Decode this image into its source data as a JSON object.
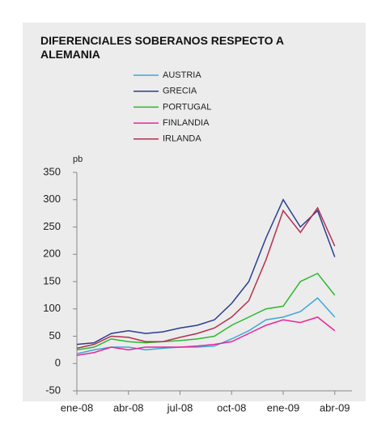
{
  "chart_data": {
    "type": "line",
    "title": "DIFERENCIALES SOBERANOS RESPECTO A ALEMANIA",
    "y_label": "pb",
    "x": [
      "2008-01",
      "2008-02",
      "2008-03",
      "2008-04",
      "2008-05",
      "2008-06",
      "2008-07",
      "2008-08",
      "2008-09",
      "2008-10",
      "2008-11",
      "2008-12",
      "2009-01",
      "2009-02",
      "2009-03",
      "2009-04"
    ],
    "xlim": [
      "2008-01",
      "2009-05"
    ],
    "xticks": [
      {
        "value": "2008-01",
        "label": "ene-08"
      },
      {
        "value": "2008-04",
        "label": "abr-08"
      },
      {
        "value": "2008-07",
        "label": "jul-08"
      },
      {
        "value": "2008-10",
        "label": "oct-08"
      },
      {
        "value": "2009-01",
        "label": "ene-09"
      },
      {
        "value": "2009-04",
        "label": "abr-09"
      }
    ],
    "ylim": [
      -50,
      350
    ],
    "yticks": [
      -50,
      0,
      50,
      100,
      150,
      200,
      250,
      300,
      350
    ],
    "series": [
      {
        "name": "AUSTRIA",
        "color": "#3aa8d8",
        "values": [
          18,
          25,
          30,
          30,
          25,
          28,
          30,
          30,
          32,
          45,
          60,
          80,
          85,
          95,
          120,
          85
        ]
      },
      {
        "name": "GRECIA",
        "color": "#2b3d8f",
        "values": [
          35,
          38,
          55,
          60,
          55,
          58,
          65,
          70,
          80,
          110,
          150,
          230,
          300,
          250,
          280,
          195
        ]
      },
      {
        "name": "PORTUGAL",
        "color": "#2db82d",
        "values": [
          25,
          30,
          45,
          40,
          38,
          40,
          42,
          45,
          50,
          70,
          85,
          100,
          105,
          150,
          165,
          125
        ]
      },
      {
        "name": "FINLANDIA",
        "color": "#e8259a",
        "values": [
          15,
          20,
          30,
          25,
          30,
          30,
          30,
          32,
          35,
          40,
          55,
          70,
          80,
          75,
          85,
          60
        ]
      },
      {
        "name": "IRLANDA",
        "color": "#b0304e",
        "values": [
          28,
          35,
          50,
          48,
          40,
          40,
          48,
          55,
          65,
          85,
          115,
          190,
          280,
          240,
          285,
          215
        ]
      }
    ]
  }
}
